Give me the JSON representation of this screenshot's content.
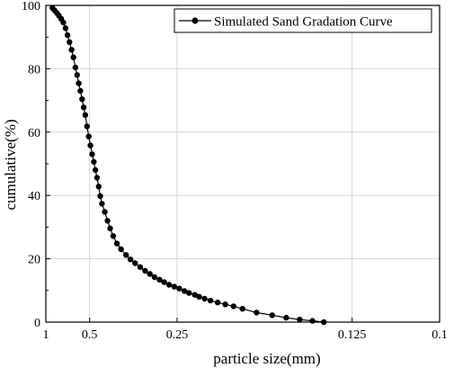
{
  "chart_data": {
    "type": "line",
    "xscale": "reciprocal",
    "xlim": [
      1,
      0.1
    ],
    "ylim": [
      0,
      100
    ],
    "xlabel": "particle size(mm)",
    "ylabel": "cumulative(%)",
    "grid": true,
    "legend_position": "top-right",
    "x_tick_labels": [
      "1",
      "0.5",
      "0.25",
      "0.125",
      "0.1"
    ],
    "y_tick_labels": [
      "0",
      "20",
      "40",
      "60",
      "80",
      "100"
    ],
    "series": [
      {
        "name": "Simulated Sand Gradation Curve",
        "marker": "circle",
        "color": "#000000",
        "points": [
          [
            0.87,
            99.2
          ],
          [
            0.833,
            98.4
          ],
          [
            0.8,
            97.6
          ],
          [
            0.77,
            96.8
          ],
          [
            0.741,
            95.8
          ],
          [
            0.714,
            94.6
          ],
          [
            0.69,
            92.8
          ],
          [
            0.669,
            90.6
          ],
          [
            0.649,
            88.4
          ],
          [
            0.63,
            86.0
          ],
          [
            0.613,
            83.6
          ],
          [
            0.597,
            80.4
          ],
          [
            0.583,
            78.0
          ],
          [
            0.571,
            75.4
          ],
          [
            0.559,
            73.0
          ],
          [
            0.547,
            70.4
          ],
          [
            0.536,
            67.8
          ],
          [
            0.526,
            65.4
          ],
          [
            0.515,
            61.8
          ],
          [
            0.505,
            58.6
          ],
          [
            0.495,
            55.8
          ],
          [
            0.486,
            53.0
          ],
          [
            0.477,
            50.6
          ],
          [
            0.469,
            48.0
          ],
          [
            0.461,
            45.6
          ],
          [
            0.453,
            42.8
          ],
          [
            0.446,
            39.8
          ],
          [
            0.438,
            37.4
          ],
          [
            0.426,
            34.8
          ],
          [
            0.415,
            32.0
          ],
          [
            0.405,
            29.6
          ],
          [
            0.394,
            27.2
          ],
          [
            0.381,
            24.8
          ],
          [
            0.368,
            23.0
          ],
          [
            0.353,
            21.2
          ],
          [
            0.341,
            19.8
          ],
          [
            0.329,
            18.6
          ],
          [
            0.317,
            17.4
          ],
          [
            0.306,
            16.2
          ],
          [
            0.296,
            15.2
          ],
          [
            0.287,
            14.2
          ],
          [
            0.278,
            13.4
          ],
          [
            0.27,
            12.6
          ],
          [
            0.262,
            11.8
          ],
          [
            0.254,
            11.2
          ],
          [
            0.247,
            10.6
          ],
          [
            0.24,
            9.8
          ],
          [
            0.234,
            9.2
          ],
          [
            0.227,
            8.6
          ],
          [
            0.222,
            8.0
          ],
          [
            0.216,
            7.4
          ],
          [
            0.21,
            6.8
          ],
          [
            0.203,
            6.2
          ],
          [
            0.196,
            5.6
          ],
          [
            0.189,
            5.0
          ],
          [
            0.182,
            4.2
          ],
          [
            0.172,
            3.0
          ],
          [
            0.162,
            2.2
          ],
          [
            0.154,
            1.4
          ],
          [
            0.147,
            0.8
          ],
          [
            0.141,
            0.4
          ],
          [
            0.136,
            0.0
          ]
        ]
      }
    ]
  }
}
